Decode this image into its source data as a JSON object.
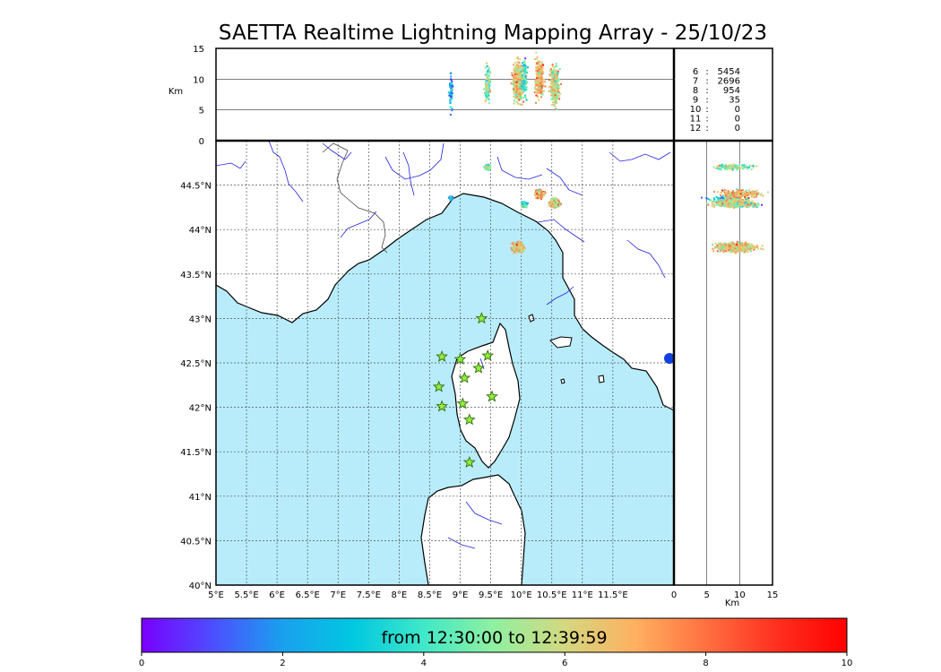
{
  "title": "SAETTA Realtime Lightning Mapping Array - 25/10/23",
  "colorbar": {
    "label": "from 12:30:00 to 12:39:59",
    "ticks": [
      "0",
      "2",
      "4",
      "6",
      "8",
      "10"
    ],
    "colors": [
      "#7a00ff",
      "#4d4dff",
      "#1aa0ee",
      "#00c8e0",
      "#40e8c8",
      "#90f0a0",
      "#d4d880",
      "#ffb060",
      "#ff7040",
      "#ff3020",
      "#ff0000"
    ]
  },
  "colors": {
    "sea": "#b8ecfb",
    "land": "#ffffff",
    "rivers": "#2222dd",
    "coast": "#000000",
    "grid": "#555555",
    "station_fill": "#8cf03c",
    "station_stroke": "#3a6a10",
    "highlight_count": "#ff0000"
  },
  "chart_data": {
    "type": "scatter",
    "title": "SAETTA Realtime Lightning Mapping Array - 25/10/23",
    "map": {
      "x_range": [
        5,
        12.5
      ],
      "y_range": [
        40,
        45
      ],
      "x_ticks": [
        "5°E",
        "5.5°E",
        "6°E",
        "6.5°E",
        "7°E",
        "7.5°E",
        "8°E",
        "8.5°E",
        "9°E",
        "9.5°E",
        "10°E",
        "10.5°E",
        "11°E",
        "11.5°E"
      ],
      "y_ticks": [
        "40°N",
        "40.5°N",
        "41°N",
        "41.5°N",
        "42°N",
        "42.5°N",
        "43°N",
        "43.5°N",
        "44°N",
        "44.5°N"
      ],
      "grid": true
    },
    "altitude_vs_longitude": {
      "ylabel": "Km",
      "y_range": [
        0,
        15
      ],
      "y_ticks": [
        "0",
        "5",
        "10",
        "15"
      ]
    },
    "altitude_vs_latitude": {
      "xlabel": "Km",
      "x_range": [
        0,
        15
      ],
      "x_ticks": [
        "0",
        "5",
        "10",
        "15"
      ]
    },
    "station_count": {
      "rows": [
        {
          "n": "6",
          "sep": ":",
          "count": "5454",
          "highlight": true
        },
        {
          "n": "7",
          "sep": ":",
          "count": "2696",
          "highlight": false
        },
        {
          "n": "8",
          "sep": ":",
          "count": "954",
          "highlight": false
        },
        {
          "n": "9",
          "sep": ":",
          "count": "35",
          "highlight": false
        },
        {
          "n": "10",
          "sep": ":",
          "count": "0",
          "highlight": false
        },
        {
          "n": "11",
          "sep": ":",
          "count": "0",
          "highlight": false
        },
        {
          "n": "12",
          "sep": ":",
          "count": "0",
          "highlight": false
        }
      ]
    },
    "clusters": [
      {
        "lon": 8.85,
        "lat": 44.35,
        "alt": 8.0,
        "spread": 0.03,
        "n": 60,
        "t": 2.5
      },
      {
        "lon": 9.45,
        "lat": 44.7,
        "alt": 9.0,
        "spread": 0.05,
        "n": 120,
        "t": 5.0
      },
      {
        "lon": 9.95,
        "lat": 43.8,
        "alt": 9.5,
        "spread": 0.09,
        "n": 500,
        "t": 6.5
      },
      {
        "lon": 10.05,
        "lat": 44.28,
        "alt": 10.0,
        "spread": 0.05,
        "n": 120,
        "t": 4.0
      },
      {
        "lon": 10.3,
        "lat": 44.4,
        "alt": 10.0,
        "spread": 0.07,
        "n": 260,
        "t": 7.0
      },
      {
        "lon": 10.55,
        "lat": 44.3,
        "alt": 9.0,
        "spread": 0.08,
        "n": 320,
        "t": 6.0
      }
    ],
    "stations": [
      {
        "lon": 9.35,
        "lat": 43.0
      },
      {
        "lon": 8.7,
        "lat": 42.57
      },
      {
        "lon": 9.0,
        "lat": 42.54
      },
      {
        "lon": 9.45,
        "lat": 42.58
      },
      {
        "lon": 9.07,
        "lat": 42.33
      },
      {
        "lon": 9.3,
        "lat": 42.44
      },
      {
        "lon": 8.65,
        "lat": 42.23
      },
      {
        "lon": 9.52,
        "lat": 42.12
      },
      {
        "lon": 8.7,
        "lat": 42.01
      },
      {
        "lon": 9.04,
        "lat": 42.04
      },
      {
        "lon": 9.15,
        "lat": 41.86
      },
      {
        "lon": 9.15,
        "lat": 41.38
      }
    ]
  }
}
